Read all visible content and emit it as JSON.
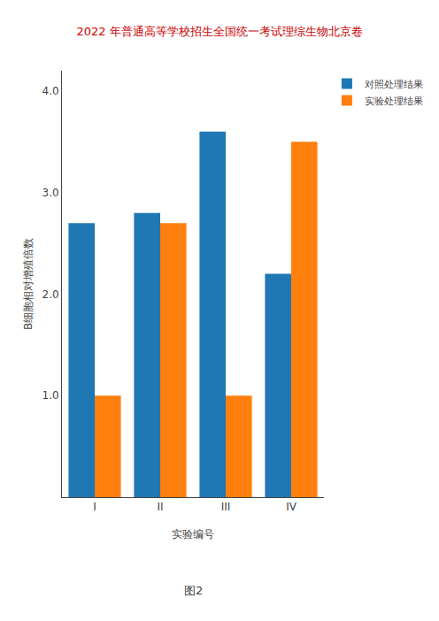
{
  "chart_data": {
    "type": "bar",
    "title": "2022 年普通高等学校招生全国统一考试理综生物北京卷",
    "title_color": "#CC0000",
    "x_label": "实验编号",
    "y_label": "B细胞相对增殖倍数",
    "annotations": [
      "图2"
    ],
    "categories": [
      "I",
      "II",
      "III",
      "IV"
    ],
    "series": [
      {
        "name": "对照处理结果",
        "values": [
          2.7,
          2.8,
          3.6,
          2.2
        ]
      },
      {
        "name": "实验处理结果",
        "values": [
          1.0,
          2.7,
          1.0,
          3.5
        ]
      }
    ],
    "ylim": [
      0,
      4.2
    ],
    "yticks": [
      {
        "value": 1.0,
        "label": "1.0"
      },
      {
        "value": 2.0,
        "label": "2.0"
      },
      {
        "value": 3.0,
        "label": "3.0"
      },
      {
        "value": 4.0,
        "label": "4.0"
      }
    ],
    "grid": false,
    "legend": "right"
  }
}
